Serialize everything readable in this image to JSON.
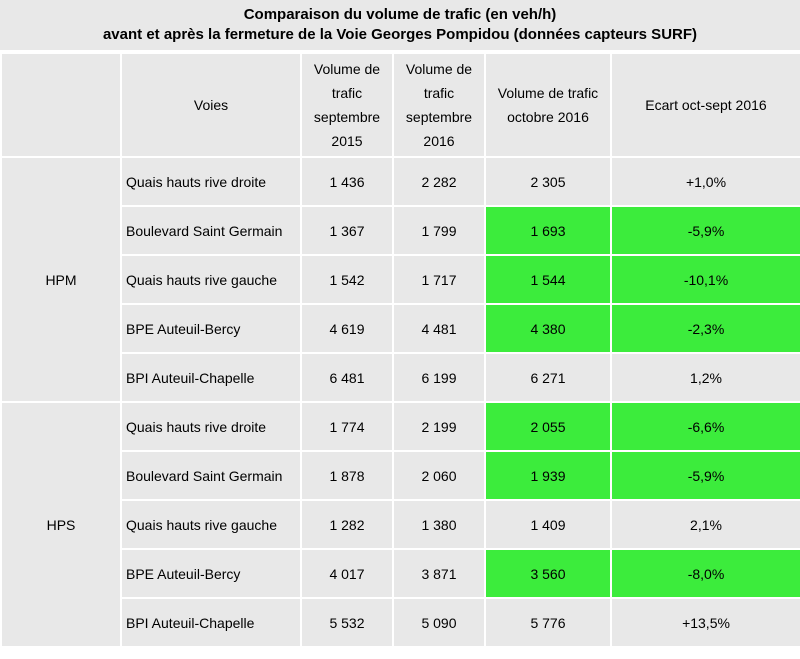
{
  "title": {
    "line1": "Comparaison du volume de trafic (en veh/h)",
    "line2": "avant et après la fermeture de la Voie Georges Pompidou (données capteurs SURF)"
  },
  "headers": {
    "period": "",
    "voies": "Voies",
    "sept2015": "Volume de trafic septembre 2015",
    "sept2016": "Volume de trafic septembre 2016",
    "oct2016": "Volume de trafic octobre 2016",
    "ecart": "Ecart oct-sept 2016"
  },
  "colors": {
    "highlight": "#3cec3c",
    "cell_background": "#e8e8e8"
  },
  "groups": [
    {
      "period": "HPM",
      "rows": [
        {
          "voie": "Quais hauts rive droite",
          "sept2015": "1 436",
          "sept2016": "2 282",
          "oct2016": "2 305",
          "ecart": "+1,0%",
          "highlight": false
        },
        {
          "voie": "Boulevard Saint Germain",
          "sept2015": "1 367",
          "sept2016": "1 799",
          "oct2016": "1 693",
          "ecart": "-5,9%",
          "highlight": true
        },
        {
          "voie": "Quais hauts rive gauche",
          "sept2015": "1 542",
          "sept2016": "1 717",
          "oct2016": "1 544",
          "ecart": "-10,1%",
          "highlight": true
        },
        {
          "voie": "BPE Auteuil-Bercy",
          "sept2015": "4 619",
          "sept2016": "4 481",
          "oct2016": "4 380",
          "ecart": "-2,3%",
          "highlight": true
        },
        {
          "voie": "BPI Auteuil-Chapelle",
          "sept2015": "6 481",
          "sept2016": "6 199",
          "oct2016": "6 271",
          "ecart": "1,2%",
          "highlight": false
        }
      ]
    },
    {
      "period": "HPS",
      "rows": [
        {
          "voie": "Quais hauts rive droite",
          "sept2015": "1 774",
          "sept2016": "2 199",
          "oct2016": "2 055",
          "ecart": "-6,6%",
          "highlight": true
        },
        {
          "voie": "Boulevard Saint Germain",
          "sept2015": "1 878",
          "sept2016": "2 060",
          "oct2016": "1 939",
          "ecart": "-5,9%",
          "highlight": true
        },
        {
          "voie": "Quais hauts rive gauche",
          "sept2015": "1 282",
          "sept2016": "1 380",
          "oct2016": "1 409",
          "ecart": "2,1%",
          "highlight": false
        },
        {
          "voie": "BPE Auteuil-Bercy",
          "sept2015": "4 017",
          "sept2016": "3 871",
          "oct2016": "3 560",
          "ecart": "-8,0%",
          "highlight": true
        },
        {
          "voie": "BPI Auteuil-Chapelle",
          "sept2015": "5 532",
          "sept2016": "5 090",
          "oct2016": "5 776",
          "ecart": "+13,5%",
          "highlight": false
        }
      ]
    }
  ]
}
